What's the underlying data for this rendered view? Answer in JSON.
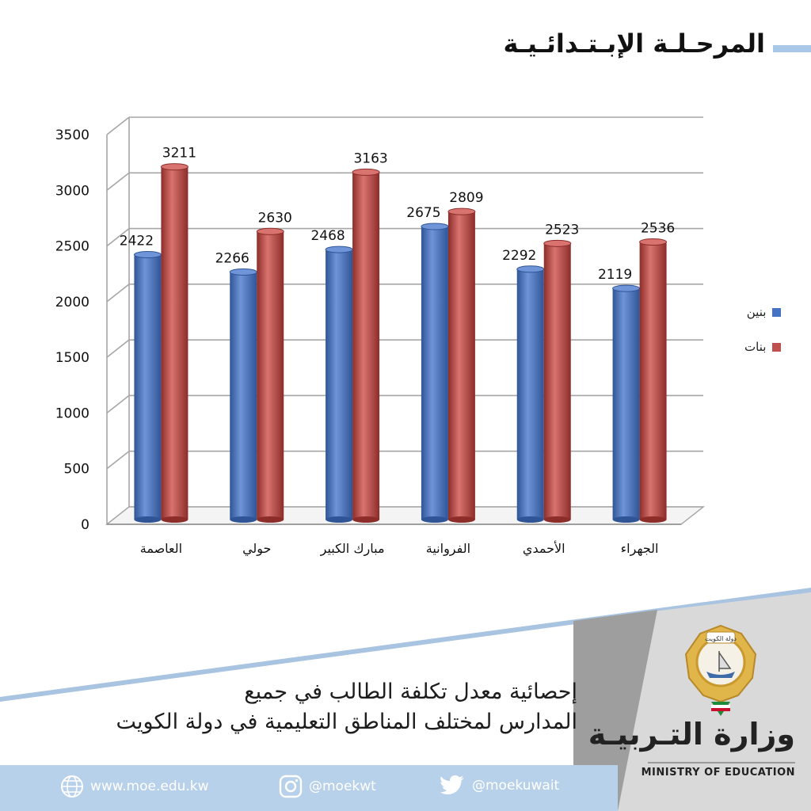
{
  "header": {
    "title": "المرحـلـة الإبـتـدائـيـة"
  },
  "chart_data": {
    "type": "bar",
    "categories": [
      "العاصمة",
      "حولي",
      "مبارك الكبير",
      "الفروانية",
      "الأحمدي",
      "الجهراء"
    ],
    "series": [
      {
        "name": "بنين",
        "values": [
          2422,
          2266,
          2468,
          2675,
          2292,
          2119
        ],
        "color": "#4472c4"
      },
      {
        "name": "بنات",
        "values": [
          3211,
          2630,
          3163,
          2809,
          2523,
          2536
        ],
        "color": "#c0504d"
      }
    ],
    "yticks": [
      "0",
      "500",
      "1000",
      "1500",
      "2000",
      "2500",
      "3000",
      "3500"
    ],
    "ylim": [
      0,
      3500
    ],
    "grid": true,
    "legend_position": "right"
  },
  "footer": {
    "line1": "إحصائية معدل تكلفة الطالب في جميع",
    "line2": "المدارس لمختلف المناطق التعليمية في دولة الكويت",
    "ministry_ar": "وزارة التـربيـة",
    "ministry_en": "MINISTRY OF EDUCATION",
    "emblem_text": "دولة الكويت"
  },
  "social": {
    "website": "www.moe.edu.kw",
    "instagram": "@moekwt",
    "twitter": "@moekuwait"
  }
}
